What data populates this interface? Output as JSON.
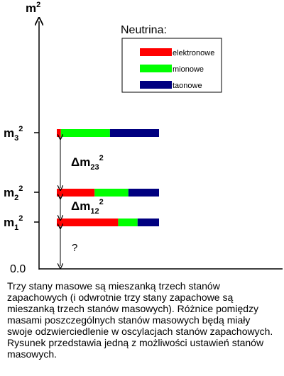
{
  "axis": {
    "y_title_base": "m",
    "y_title_sup": "2",
    "origin_label": "0.0"
  },
  "legend": {
    "title": "Neutrina:",
    "items": [
      {
        "label": "elektronowe",
        "color": "#ff0000"
      },
      {
        "label": "mionowe",
        "color": "#00ff00"
      },
      {
        "label": "taonowe",
        "color": "#000080"
      }
    ]
  },
  "levels": [
    {
      "base": "m",
      "sub": "3",
      "sup": "2",
      "fractions": [
        0.04,
        0.48,
        0.48
      ]
    },
    {
      "base": "m",
      "sub": "2",
      "sup": "2",
      "fractions": [
        0.37,
        0.33,
        0.3
      ]
    },
    {
      "base": "m",
      "sub": "1",
      "sup": "2",
      "fractions": [
        0.6,
        0.19,
        0.21
      ]
    }
  ],
  "gaps": [
    {
      "base": "Δm",
      "sub": "23",
      "sup": "2"
    },
    {
      "base": "Δm",
      "sub": "12",
      "sup": "2"
    },
    {
      "text": "?"
    }
  ],
  "caption": "Trzy stany masowe są mieszanką trzech stanów zapachowych (i odwrotnie trzy stany zapachowe są mieszanką trzech stanów masowych). Różnice pomiędzy masami poszczególnych stanów masowych będą miały swoje odzwierciedlenie w oscylacjach stanów zapachowych. Rysunek przedstawia jedną z możliwości ustawień stanów masowych."
}
